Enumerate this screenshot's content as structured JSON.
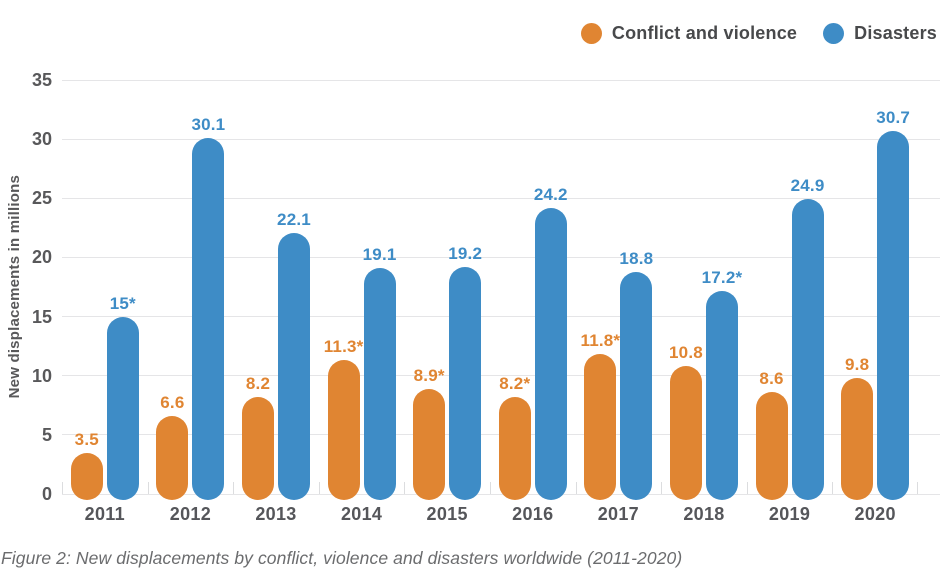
{
  "legend": {
    "items": [
      {
        "label": "Conflict and violence",
        "color": "#E08532"
      },
      {
        "label": "Disasters",
        "color": "#3E8CC6"
      }
    ]
  },
  "y_axis": {
    "title": "New displacements in millions",
    "ticks": [
      "35",
      "30",
      "25",
      "20",
      "15",
      "10",
      "5",
      "0"
    ]
  },
  "caption": "Figure 2: New displacements by conflict, violence and disasters worldwide (2011-2020)",
  "chart_data": {
    "type": "bar",
    "categories": [
      "2011",
      "2012",
      "2013",
      "2014",
      "2015",
      "2016",
      "2017",
      "2018",
      "2019",
      "2020"
    ],
    "series": [
      {
        "name": "Conflict and violence",
        "color": "#E08532",
        "values": [
          3.5,
          6.6,
          8.2,
          11.3,
          8.9,
          8.2,
          11.8,
          10.8,
          8.6,
          9.8
        ],
        "labels": [
          "3.5",
          "6.6",
          "8.2",
          "11.3*",
          "8.9*",
          "8.2*",
          "11.8*",
          "10.8",
          "8.6",
          "9.8"
        ]
      },
      {
        "name": "Disasters",
        "color": "#3E8CC6",
        "values": [
          15,
          30.1,
          22.1,
          19.1,
          19.2,
          24.2,
          18.8,
          17.2,
          24.9,
          30.7
        ],
        "labels": [
          "15*",
          "30.1",
          "22.1",
          "19.1",
          "19.2",
          "24.2",
          "18.8",
          "17.2*",
          "24.9",
          "30.7"
        ]
      }
    ],
    "ylabel": "New displacements in millions",
    "ylim": [
      0,
      35
    ],
    "ytick_step": 5,
    "grid": true,
    "legend_position": "top-right"
  }
}
